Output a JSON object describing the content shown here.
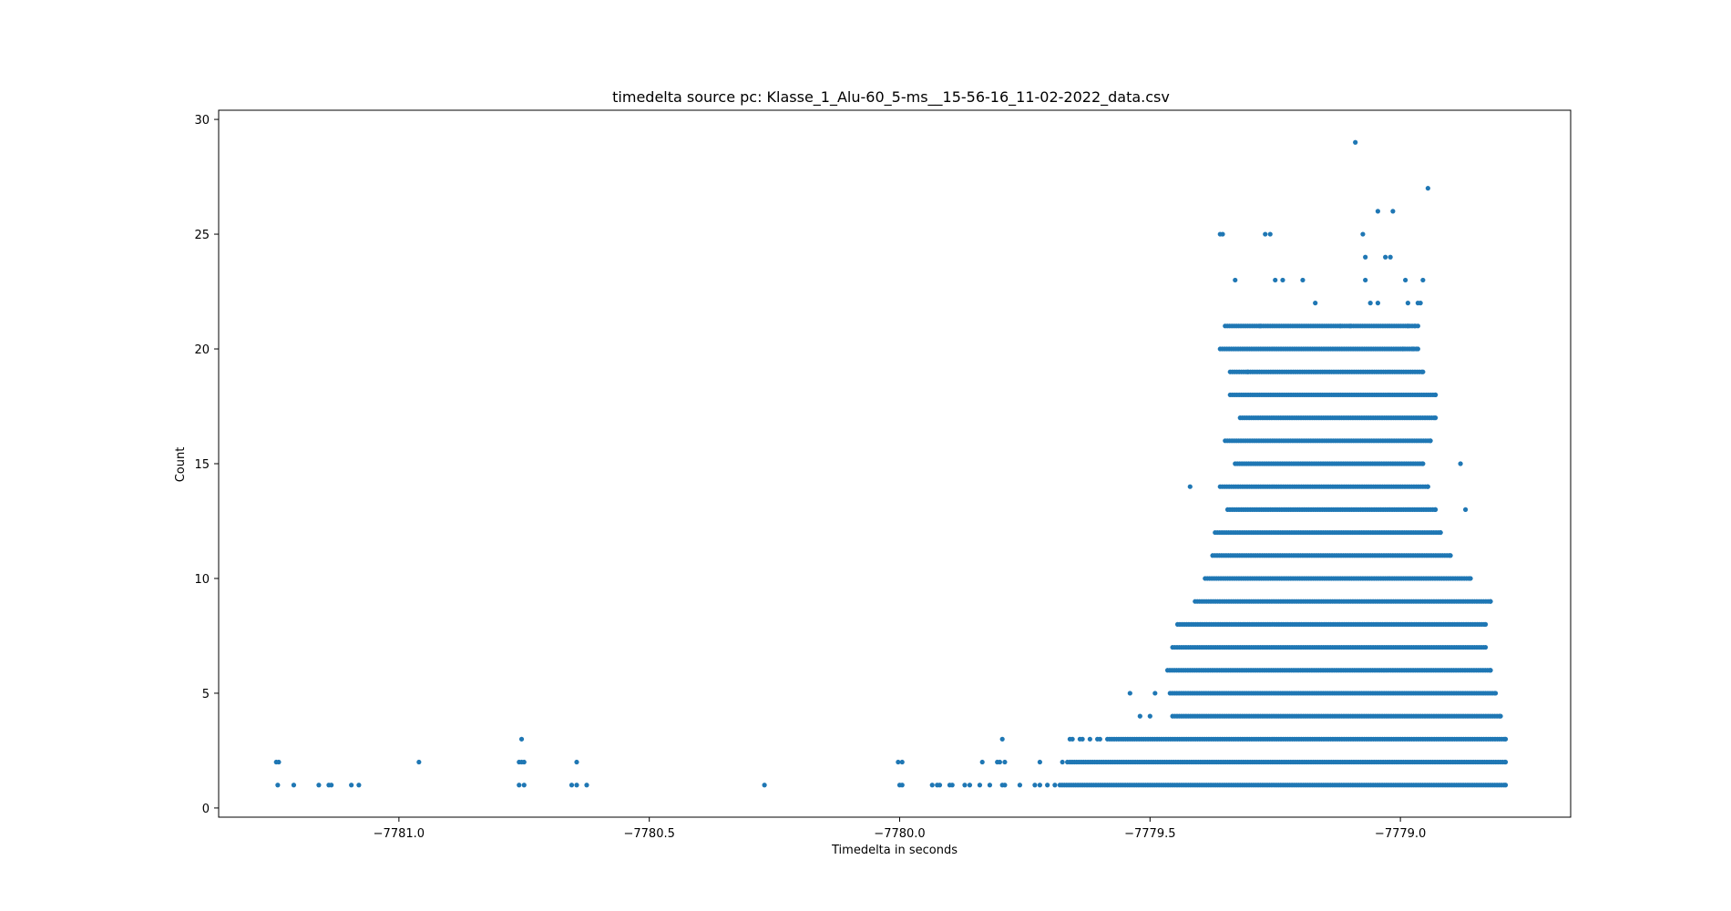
{
  "chart_data": {
    "type": "scatter",
    "title": "timedelta source pc: Klasse_1_Alu-60_5-ms__15-56-16_11-02-2022_data.csv",
    "xlabel": "Timedelta in seconds",
    "ylabel": "Count",
    "xlim": [
      -7781.36,
      -7778.66
    ],
    "ylim": [
      -0.4,
      30.4
    ],
    "xticks": [
      -7781.0,
      -7780.5,
      -7780.0,
      -7779.5,
      -7779.0
    ],
    "xtick_labels": [
      "−7781.0",
      "−7780.5",
      "−7780.0",
      "−7779.5",
      "−7779.0"
    ],
    "yticks": [
      0,
      5,
      10,
      15,
      20,
      25,
      30
    ],
    "ytick_labels": [
      "0",
      "5",
      "10",
      "15",
      "20",
      "25",
      "30"
    ],
    "grid": false,
    "marker_color": "#1f77b4",
    "points": [
      [
        -7781.245,
        2
      ],
      [
        -7781.24,
        2
      ],
      [
        -7781.242,
        1
      ],
      [
        -7781.21,
        1
      ],
      [
        -7781.16,
        1
      ],
      [
        -7781.14,
        1
      ],
      [
        -7781.135,
        1
      ],
      [
        -7781.095,
        1
      ],
      [
        -7781.08,
        1
      ],
      [
        -7780.96,
        2
      ],
      [
        -7780.755,
        3
      ],
      [
        -7780.76,
        2
      ],
      [
        -7780.755,
        2
      ],
      [
        -7780.75,
        2
      ],
      [
        -7780.76,
        1
      ],
      [
        -7780.75,
        1
      ],
      [
        -7780.655,
        1
      ],
      [
        -7780.645,
        1
      ],
      [
        -7780.645,
        2
      ],
      [
        -7780.625,
        1
      ],
      [
        -7780.27,
        1
      ],
      [
        -7780.003,
        2
      ],
      [
        -7779.995,
        2
      ],
      [
        -7780.0,
        1
      ],
      [
        -7779.995,
        1
      ],
      [
        -7779.935,
        1
      ],
      [
        -7779.925,
        1
      ],
      [
        -7779.92,
        1
      ],
      [
        -7779.9,
        1
      ],
      [
        -7779.895,
        1
      ],
      [
        -7779.87,
        1
      ],
      [
        -7779.86,
        1
      ],
      [
        -7779.84,
        1
      ],
      [
        -7779.835,
        2
      ],
      [
        -7779.82,
        1
      ],
      [
        -7779.805,
        2
      ],
      [
        -7779.8,
        2
      ],
      [
        -7779.79,
        2
      ],
      [
        -7779.795,
        3
      ],
      [
        -7779.795,
        1
      ],
      [
        -7779.79,
        1
      ],
      [
        -7779.76,
        1
      ],
      [
        -7779.73,
        1
      ],
      [
        -7779.72,
        1
      ],
      [
        -7779.72,
        2
      ],
      [
        -7779.705,
        1
      ],
      [
        -7779.69,
        1
      ],
      [
        -7779.675,
        2
      ],
      [
        -7779.665,
        2
      ],
      [
        -7779.66,
        3
      ],
      [
        -7779.655,
        3
      ],
      [
        -7779.64,
        3
      ],
      [
        -7779.635,
        3
      ],
      [
        -7779.62,
        3
      ],
      [
        -7779.605,
        3
      ],
      [
        -7779.6,
        3
      ],
      [
        -7779.54,
        5
      ],
      [
        -7779.52,
        4
      ],
      [
        -7779.5,
        4
      ],
      [
        -7779.49,
        5
      ],
      [
        -7779.42,
        14
      ],
      [
        -7779.27,
        25
      ],
      [
        -7779.25,
        23
      ],
      [
        -7779.235,
        23
      ],
      [
        -7779.26,
        25
      ],
      [
        -7779.17,
        22
      ],
      [
        -7779.09,
        29
      ],
      [
        -7779.075,
        25
      ],
      [
        -7779.07,
        24
      ],
      [
        -7779.045,
        26
      ],
      [
        -7779.03,
        24
      ],
      [
        -7779.02,
        24
      ],
      [
        -7779.015,
        26
      ],
      [
        -7778.99,
        23
      ],
      [
        -7778.965,
        22
      ],
      [
        -7778.955,
        23
      ],
      [
        -7778.945,
        27
      ],
      [
        -7778.93,
        18
      ],
      [
        -7778.88,
        15
      ],
      [
        -7778.87,
        13
      ],
      [
        -7779.36,
        25
      ],
      [
        -7779.355,
        25
      ],
      [
        -7779.33,
        23
      ],
      [
        -7779.305,
        19
      ],
      [
        -7779.28,
        21
      ],
      [
        -7779.195,
        23
      ],
      [
        -7779.12,
        21
      ],
      [
        -7779.1,
        21
      ],
      [
        -7779.07,
        23
      ],
      [
        -7779.06,
        22
      ],
      [
        -7779.045,
        22
      ],
      [
        -7778.985,
        22
      ],
      [
        -7778.96,
        22
      ],
      [
        -7778.985,
        21
      ],
      [
        -7778.965,
        21
      ],
      [
        -7778.995,
        20
      ],
      [
        -7778.975,
        20
      ]
    ],
    "bands": [
      {
        "y": 1,
        "x0": -7779.68,
        "x1": -7778.79
      },
      {
        "y": 2,
        "x0": -7779.66,
        "x1": -7778.79
      },
      {
        "y": 3,
        "x0": -7779.585,
        "x1": -7778.79
      },
      {
        "y": 4,
        "x0": -7779.455,
        "x1": -7778.8
      },
      {
        "y": 5,
        "x0": -7779.46,
        "x1": -7778.81
      },
      {
        "y": 6,
        "x0": -7779.465,
        "x1": -7778.82
      },
      {
        "y": 7,
        "x0": -7779.455,
        "x1": -7778.83
      },
      {
        "y": 8,
        "x0": -7779.445,
        "x1": -7778.83
      },
      {
        "y": 9,
        "x0": -7779.41,
        "x1": -7778.82
      },
      {
        "y": 10,
        "x0": -7779.39,
        "x1": -7778.86
      },
      {
        "y": 11,
        "x0": -7779.375,
        "x1": -7778.9
      },
      {
        "y": 12,
        "x0": -7779.37,
        "x1": -7778.92
      },
      {
        "y": 13,
        "x0": -7779.345,
        "x1": -7778.93
      },
      {
        "y": 14,
        "x0": -7779.36,
        "x1": -7778.945
      },
      {
        "y": 15,
        "x0": -7779.33,
        "x1": -7778.955
      },
      {
        "y": 16,
        "x0": -7779.35,
        "x1": -7778.94
      },
      {
        "y": 17,
        "x0": -7779.32,
        "x1": -7778.93
      },
      {
        "y": 18,
        "x0": -7779.34,
        "x1": -7778.93
      },
      {
        "y": 19,
        "x0": -7779.34,
        "x1": -7778.955
      },
      {
        "y": 20,
        "x0": -7779.36,
        "x1": -7778.965
      },
      {
        "y": 21,
        "x0": -7779.35,
        "x1": -7778.97
      }
    ]
  }
}
